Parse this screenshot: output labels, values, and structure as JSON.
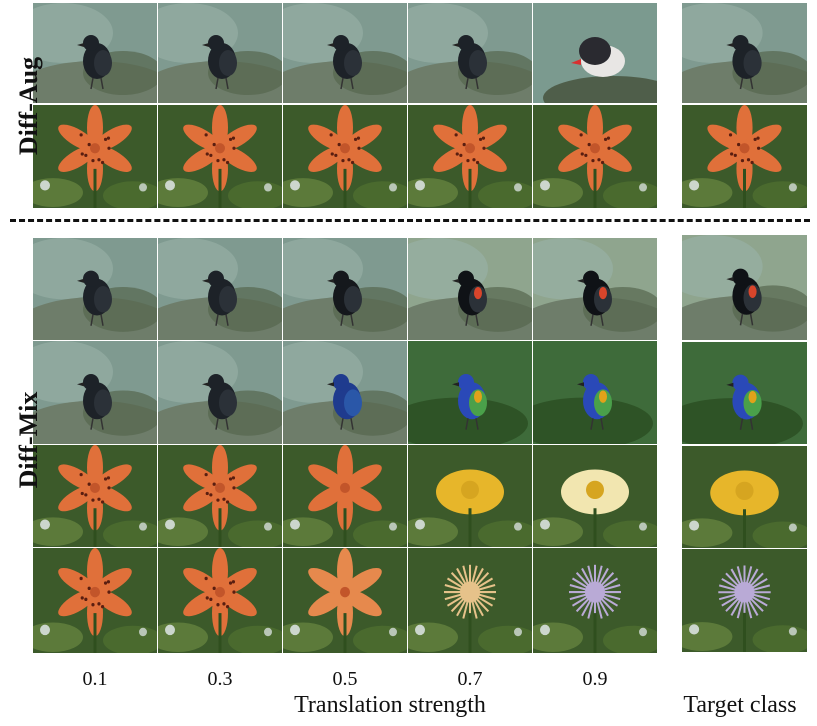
{
  "sections": {
    "diff_aug": {
      "label": "Diff-Aug"
    },
    "diff_mix": {
      "label": "Diff-Mix"
    }
  },
  "x_axis": {
    "ticks": [
      "0.1",
      "0.3",
      "0.5",
      "0.7",
      "0.9"
    ],
    "title": "Translation strength"
  },
  "target_column": {
    "title": "Target class"
  },
  "image_subjects": {
    "aug_row1": [
      "dark-bird",
      "dark-bird",
      "dark-bird",
      "dark-bird",
      "puffin-like-bird"
    ],
    "aug_row2": [
      "tiger-lily",
      "tiger-lily",
      "tiger-lily",
      "tiger-lily",
      "tiger-lily"
    ],
    "mix_row1": [
      "dark-bird",
      "dark-bird",
      "blackbird",
      "red-winged-blackbird",
      "red-winged-blackbird"
    ],
    "mix_row2": [
      "dark-bird",
      "dark-bird",
      "blue-bird",
      "painted-bunting",
      "painted-bunting"
    ],
    "mix_row3": [
      "tiger-lily",
      "tiger-lily",
      "orange-flower",
      "globeflower",
      "pale-yellow-flower"
    ],
    "mix_row4": [
      "tiger-lily",
      "tiger-lily",
      "spiky-flower",
      "thistle-flower",
      "globe-thistle"
    ],
    "targets": [
      "dark-bird",
      "tiger-lily",
      "red-winged-blackbird",
      "painted-bunting",
      "globeflower",
      "globe-thistle"
    ]
  },
  "colors": {
    "bird_bg": "#5f7a72",
    "rock": "#6e7d6a",
    "foliage": "#3c5a2a",
    "lily": "#e0703a",
    "bunting_blue": "#2a49b8",
    "yellow": "#e7b62a",
    "thistle": "#b9aad6"
  }
}
